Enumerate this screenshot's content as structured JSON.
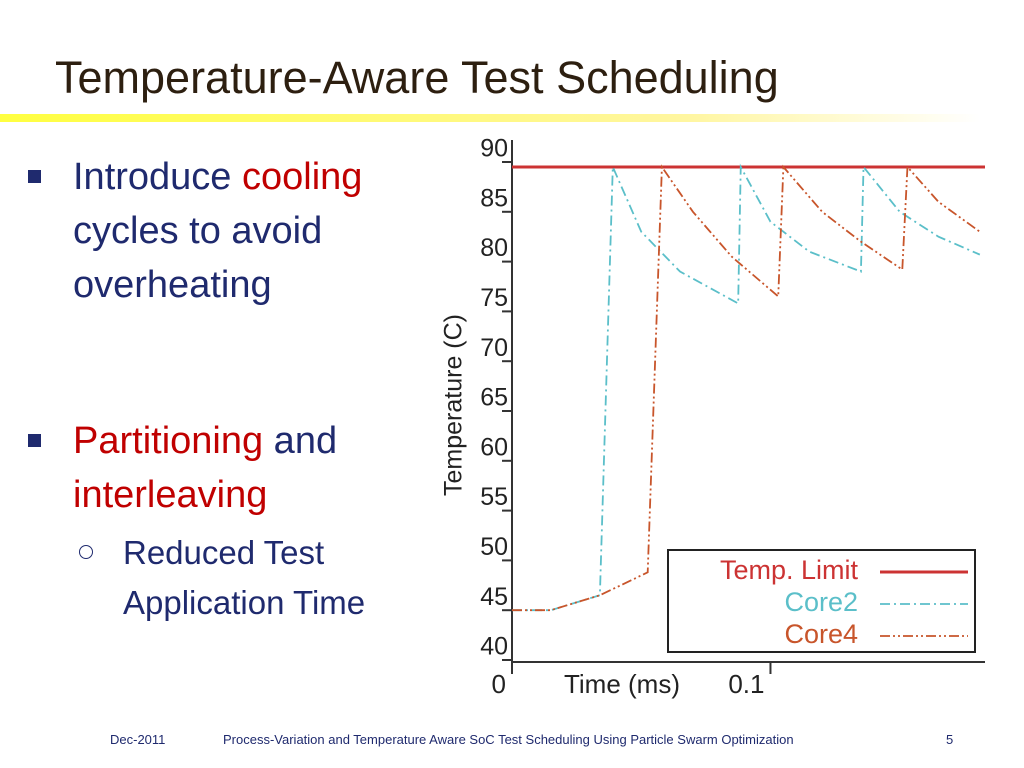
{
  "slide": {
    "title": "Temperature-Aware Test Scheduling",
    "accent_color": "#c00000",
    "bullets": [
      {
        "runs": [
          {
            "text": "Introduce "
          },
          {
            "text": "cooling",
            "accent": true
          },
          {
            "text": " cycles to avoid overheating"
          }
        ]
      },
      {
        "runs": [
          {
            "text": "Partitioning",
            "accent": true
          },
          {
            "text": " and "
          },
          {
            "text": "interleaving",
            "accent": true
          }
        ],
        "sub": [
          {
            "runs": [
              {
                "text": "Reduced Test Application Time"
              }
            ]
          }
        ]
      }
    ],
    "footer": {
      "date": "Dec-2011",
      "text": "Process-Variation and Temperature Aware SoC Test Scheduling Using Particle Swarm Optimization",
      "page": "5"
    }
  },
  "chart_data": {
    "type": "line",
    "xlabel": "Time (ms)",
    "ylabel": "Temperature (C)",
    "xlim": [
      0,
      0.183
    ],
    "xticks": [
      0,
      0.1
    ],
    "ylim": [
      40,
      90
    ],
    "yticks": [
      40,
      45,
      50,
      55,
      60,
      65,
      70,
      75,
      80,
      85,
      90
    ],
    "legend": "lower right",
    "series": [
      {
        "name": "Temp. Limit",
        "color": "#cc3333",
        "dash": "solid",
        "x": [
          0,
          0.183
        ],
        "values": [
          89.5,
          89.5
        ]
      },
      {
        "name": "Core2",
        "color": "#5bbfc9",
        "dash": "dashdot",
        "x": [
          0,
          0.015,
          0.034,
          0.039,
          0.05,
          0.065,
          0.0875,
          0.0885,
          0.1,
          0.115,
          0.135,
          0.136,
          0.15,
          0.165,
          0.181
        ],
        "values": [
          45,
          45,
          46.5,
          89.5,
          83,
          79,
          75.8,
          89.5,
          84,
          81,
          79,
          89.5,
          85,
          82.5,
          80.7
        ]
      },
      {
        "name": "Core4",
        "color": "#c8552b",
        "dash": "dashdotdot",
        "x": [
          0,
          0.015,
          0.034,
          0.0525,
          0.058,
          0.07,
          0.085,
          0.103,
          0.105,
          0.12,
          0.135,
          0.151,
          0.153,
          0.165,
          0.181
        ],
        "values": [
          45,
          45,
          46.5,
          48.8,
          89.5,
          85,
          80.5,
          76.5,
          89.5,
          85,
          82,
          79.2,
          89.5,
          86,
          83
        ]
      }
    ]
  }
}
